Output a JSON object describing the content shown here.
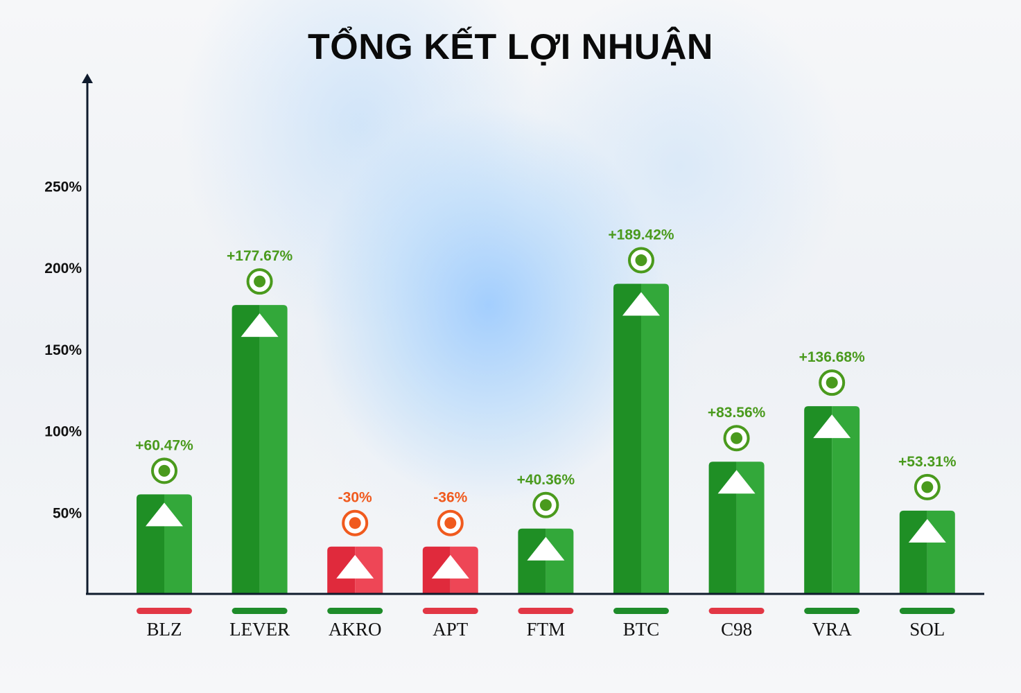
{
  "title": "TỔNG KẾT LỢI NHUẬN",
  "chart_data": {
    "type": "bar",
    "title": "TỔNG KẾT LỢI NHUẬN",
    "xlabel": "",
    "ylabel": "",
    "y_tick_labels": [
      "50%",
      "100%",
      "150%",
      "200%",
      "250%"
    ],
    "y_ticks": [
      50,
      100,
      150,
      200,
      250
    ],
    "ylim": [
      0,
      310
    ],
    "grid": false,
    "categories": [
      "BLZ",
      "LEVER",
      "AKRO",
      "APT",
      "FTM",
      "BTC",
      "C98",
      "VRA",
      "SOL"
    ],
    "values": [
      60.47,
      177.67,
      -30,
      -36,
      40.36,
      189.42,
      83.56,
      136.68,
      53.31
    ],
    "bar_heights_visual": [
      61,
      177,
      29,
      29,
      40,
      190,
      81,
      115,
      51
    ],
    "value_labels": [
      "+60.47%",
      "+177.67%",
      "-30%",
      "-36%",
      "+40.36%",
      "+189.42%",
      "+83.56%",
      "+136.68%",
      "+53.31%"
    ],
    "underline_status": [
      "red",
      "green",
      "green",
      "red",
      "red",
      "green",
      "red",
      "green",
      "green"
    ],
    "colors": {
      "positive_bar": "#1f8f25",
      "positive_bar_light": "#33a83a",
      "negative_bar": "#e02a3c",
      "negative_bar_light": "#ee4656",
      "positive_label": "#4a9a1d",
      "negative_label": "#f05a1e",
      "underline_green": "#1e8c2a",
      "underline_red": "#e23745",
      "axis": "#0f1b2d"
    }
  }
}
